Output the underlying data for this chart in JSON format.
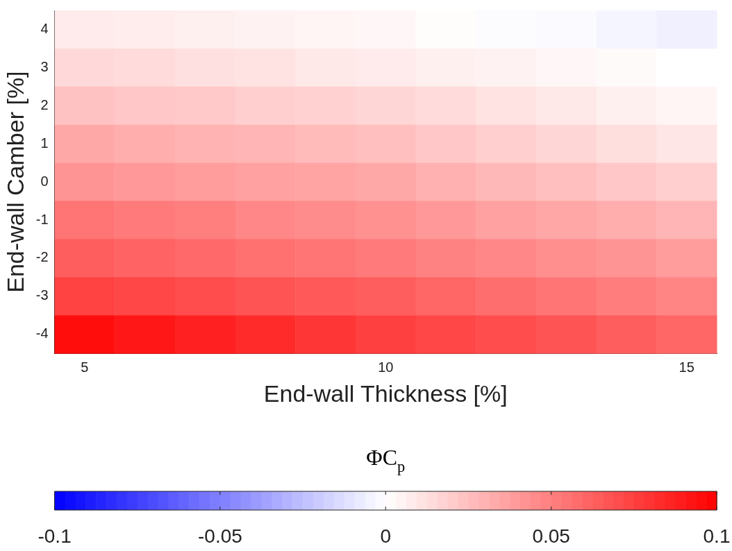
{
  "chart_data": {
    "type": "heatmap",
    "xlabel": "End-wall Thickness [%]",
    "ylabel": "End-wall Camber [%]",
    "clabel": "ΦC$_{p}$",
    "categories": [
      "5",
      null,
      null,
      null,
      null,
      "10",
      null,
      null,
      null,
      null,
      "15"
    ],
    "y_categories": [
      "4",
      "3",
      "2",
      "1",
      "0",
      "-1",
      "-2",
      "-3",
      "-4"
    ],
    "cells": [
      [
        0.008,
        0.007,
        0.006,
        0.005,
        0.004,
        0.003,
        0.001,
        -0.001,
        -0.002,
        -0.004,
        -0.006
      ],
      [
        0.015,
        0.014,
        0.012,
        0.011,
        0.009,
        0.008,
        0.006,
        0.005,
        0.003,
        0.002,
        0.0
      ],
      [
        0.024,
        0.022,
        0.021,
        0.019,
        0.018,
        0.016,
        0.014,
        0.011,
        0.009,
        0.006,
        0.004
      ],
      [
        0.034,
        0.032,
        0.03,
        0.029,
        0.027,
        0.025,
        0.022,
        0.019,
        0.016,
        0.013,
        0.01
      ],
      [
        0.042,
        0.04,
        0.039,
        0.037,
        0.036,
        0.034,
        0.031,
        0.028,
        0.025,
        0.022,
        0.019
      ],
      [
        0.054,
        0.052,
        0.05,
        0.047,
        0.045,
        0.043,
        0.04,
        0.037,
        0.035,
        0.032,
        0.029
      ],
      [
        0.063,
        0.061,
        0.059,
        0.056,
        0.054,
        0.052,
        0.049,
        0.047,
        0.044,
        0.042,
        0.039
      ],
      [
        0.074,
        0.072,
        0.07,
        0.067,
        0.065,
        0.063,
        0.06,
        0.057,
        0.054,
        0.051,
        0.048
      ],
      [
        0.095,
        0.091,
        0.087,
        0.083,
        0.079,
        0.075,
        0.072,
        0.07,
        0.067,
        0.063,
        0.06
      ]
    ],
    "clim": [
      -0.1,
      0.1
    ],
    "cticks": [
      -0.1,
      -0.05,
      0,
      0.05,
      0.1
    ],
    "grid": false
  }
}
